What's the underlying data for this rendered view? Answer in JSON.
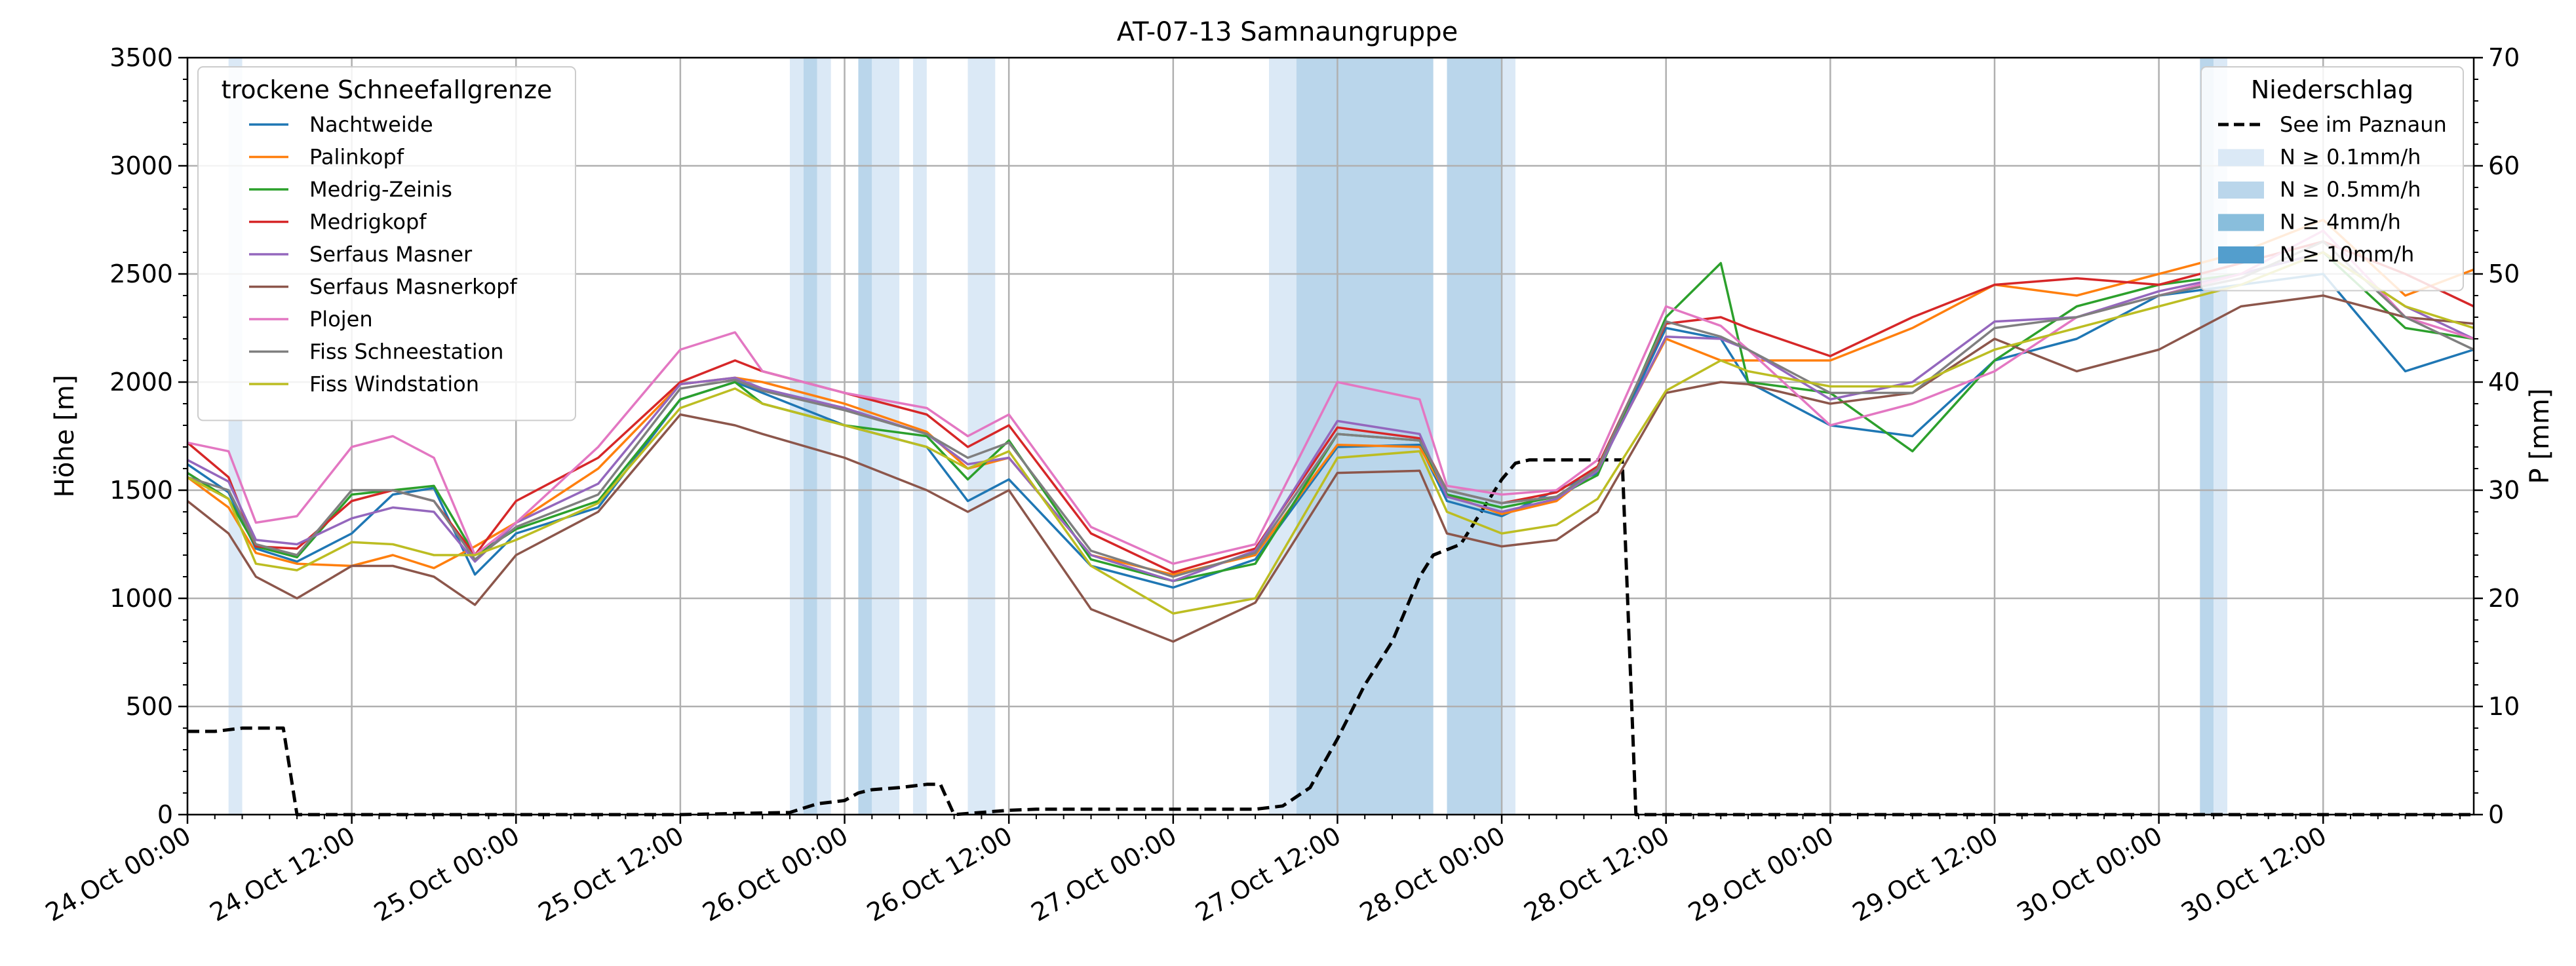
{
  "chart_data": {
    "type": "line",
    "title": "AT-07-13 Samnaungruppe",
    "ylabel": "Höhe [m]",
    "y2label": "P [mm]",
    "ylim": [
      0,
      3500
    ],
    "y2lim": [
      0,
      70
    ],
    "yticks": [
      0,
      500,
      1000,
      1500,
      2000,
      2500,
      3000,
      3500
    ],
    "y2ticks": [
      0,
      10,
      20,
      30,
      40,
      50,
      60,
      70
    ],
    "x_unit": "hours since 24.Oct 00:00",
    "xlim": [
      0,
      167
    ],
    "xticks": [
      {
        "x": 0,
        "label": "24.Oct 00:00"
      },
      {
        "x": 12,
        "label": "24.Oct 12:00"
      },
      {
        "x": 24,
        "label": "25.Oct 00:00"
      },
      {
        "x": 36,
        "label": "25.Oct 12:00"
      },
      {
        "x": 48,
        "label": "26.Oct 00:00"
      },
      {
        "x": 60,
        "label": "26.Oct 12:00"
      },
      {
        "x": 72,
        "label": "27.Oct 00:00"
      },
      {
        "x": 84,
        "label": "27.Oct 12:00"
      },
      {
        "x": 96,
        "label": "28.Oct 00:00"
      },
      {
        "x": 108,
        "label": "28.Oct 12:00"
      },
      {
        "x": 120,
        "label": "29.Oct 00:00"
      },
      {
        "x": 132,
        "label": "29.Oct 12:00"
      },
      {
        "x": 144,
        "label": "30.Oct 00:00"
      },
      {
        "x": 156,
        "label": "30.Oct 12:00"
      }
    ],
    "grid": true,
    "legend_left": {
      "title": "trockene Schneefallgrenze",
      "placement": "upper-left"
    },
    "legend_right": {
      "title": "Niederschlag",
      "placement": "upper-right",
      "entries": [
        {
          "label": "See im Paznaun",
          "kind": "line",
          "color": "#000000",
          "dash": true
        },
        {
          "label": "N ≥ 0.1mm/h",
          "kind": "patch",
          "color": "#dbe9f6"
        },
        {
          "label": "N ≥ 0.5mm/h",
          "kind": "patch",
          "color": "#bad6eb"
        },
        {
          "label": "N ≥ 4mm/h",
          "kind": "patch",
          "color": "#89bedc"
        },
        {
          "label": "N ≥ 10mm/h",
          "kind": "patch",
          "color": "#539ecd"
        }
      ]
    },
    "precip_bands": [
      {
        "x0": 3,
        "x1": 4,
        "level": 0.1
      },
      {
        "x0": 44,
        "x1": 45,
        "level": 0.1
      },
      {
        "x0": 45,
        "x1": 46,
        "level": 0.5
      },
      {
        "x0": 46,
        "x1": 47,
        "level": 0.1
      },
      {
        "x0": 49,
        "x1": 50,
        "level": 0.5
      },
      {
        "x0": 50,
        "x1": 52,
        "level": 0.1
      },
      {
        "x0": 53,
        "x1": 54,
        "level": 0.1
      },
      {
        "x0": 57,
        "x1": 59,
        "level": 0.1
      },
      {
        "x0": 79,
        "x1": 81,
        "level": 0.1
      },
      {
        "x0": 81,
        "x1": 91,
        "level": 0.5
      },
      {
        "x0": 92,
        "x1": 96,
        "level": 0.5
      },
      {
        "x0": 96,
        "x1": 97,
        "level": 0.1
      },
      {
        "x0": 147,
        "x1": 148,
        "level": 0.5
      },
      {
        "x0": 148,
        "x1": 149,
        "level": 0.1
      }
    ],
    "series": [
      {
        "name": "Nachtweide",
        "color": "#1f77b4",
        "x": [
          0,
          3,
          5,
          8,
          12,
          15,
          18,
          21,
          24,
          30,
          36,
          40,
          42,
          48,
          54,
          57,
          60,
          66,
          72,
          78,
          84,
          90,
          92,
          96,
          100,
          103,
          108,
          112,
          114,
          120,
          126,
          132,
          138,
          144,
          150,
          156,
          162,
          167
        ],
        "values": [
          1620,
          1490,
          1230,
          1170,
          1300,
          1480,
          1510,
          1110,
          1300,
          1420,
          1920,
          2000,
          1950,
          1800,
          1700,
          1450,
          1550,
          1150,
          1050,
          1180,
          1700,
          1710,
          1450,
          1380,
          1500,
          1580,
          2250,
          2200,
          2000,
          1800,
          1750,
          2100,
          2200,
          2400,
          2450,
          2500,
          2050,
          2150
        ]
      },
      {
        "name": "Palinkopf",
        "color": "#ff7f0e",
        "x": [
          0,
          3,
          5,
          8,
          12,
          15,
          18,
          21,
          24,
          30,
          36,
          40,
          42,
          48,
          54,
          57,
          60,
          66,
          72,
          78,
          84,
          90,
          92,
          96,
          100,
          103,
          108,
          112,
          114,
          120,
          126,
          132,
          138,
          144,
          150,
          156,
          162,
          167
        ],
        "values": [
          1560,
          1420,
          1210,
          1160,
          1150,
          1200,
          1140,
          1240,
          1350,
          1600,
          1990,
          2020,
          2000,
          1900,
          1770,
          1600,
          1650,
          1200,
          1110,
          1200,
          1710,
          1700,
          1480,
          1390,
          1450,
          1600,
          2200,
          2100,
          2100,
          2100,
          2250,
          2450,
          2400,
          2500,
          2600,
          2750,
          2400,
          2520
        ]
      },
      {
        "name": "Medrig-Zeinis",
        "color": "#2ca02c",
        "x": [
          0,
          3,
          5,
          8,
          12,
          15,
          18,
          21,
          24,
          30,
          36,
          40,
          42,
          48,
          54,
          57,
          60,
          66,
          72,
          78,
          84,
          90,
          92,
          96,
          100,
          103,
          108,
          112,
          114,
          120,
          126,
          132,
          138,
          144,
          150,
          156,
          162,
          167
        ],
        "values": [
          1580,
          1460,
          1240,
          1190,
          1480,
          1500,
          1520,
          1200,
          1320,
          1450,
          1920,
          2000,
          1900,
          1800,
          1750,
          1550,
          1730,
          1180,
          1080,
          1160,
          1760,
          1730,
          1480,
          1420,
          1470,
          1570,
          2300,
          2550,
          2000,
          1950,
          1680,
          2100,
          2350,
          2450,
          2500,
          2600,
          2250,
          2200
        ]
      },
      {
        "name": "Medrigkopf",
        "color": "#d62728",
        "x": [
          0,
          3,
          5,
          8,
          12,
          15,
          18,
          21,
          24,
          30,
          36,
          40,
          42,
          48,
          54,
          57,
          60,
          66,
          72,
          78,
          84,
          90,
          92,
          96,
          100,
          103,
          108,
          112,
          114,
          120,
          126,
          132,
          138,
          144,
          150,
          156,
          162,
          167
        ],
        "values": [
          1720,
          1560,
          1240,
          1230,
          1450,
          1500,
          1450,
          1200,
          1450,
          1650,
          2000,
          2100,
          2050,
          1950,
          1850,
          1700,
          1800,
          1300,
          1120,
          1230,
          1790,
          1740,
          1500,
          1440,
          1490,
          1610,
          2270,
          2300,
          2250,
          2120,
          2300,
          2450,
          2480,
          2450,
          2550,
          2650,
          2500,
          2350
        ]
      },
      {
        "name": "Serfaus Masner",
        "color": "#9467bd",
        "x": [
          0,
          3,
          5,
          8,
          12,
          15,
          18,
          21,
          24,
          30,
          36,
          40,
          42,
          48,
          54,
          57,
          60,
          66,
          72,
          78,
          84,
          90,
          92,
          96,
          100,
          103,
          108,
          112,
          114,
          120,
          126,
          132,
          138,
          144,
          150,
          156,
          162,
          167
        ],
        "values": [
          1640,
          1540,
          1270,
          1250,
          1370,
          1420,
          1400,
          1170,
          1350,
          1530,
          1990,
          2020,
          1970,
          1880,
          1760,
          1620,
          1650,
          1200,
          1080,
          1220,
          1820,
          1760,
          1470,
          1400,
          1460,
          1590,
          2210,
          2200,
          2150,
          1920,
          2000,
          2280,
          2300,
          2420,
          2500,
          2600,
          2350,
          2200
        ]
      },
      {
        "name": "Serfaus Masnerkopf",
        "color": "#8c564b",
        "x": [
          0,
          3,
          5,
          8,
          12,
          15,
          18,
          21,
          24,
          30,
          36,
          40,
          42,
          48,
          54,
          57,
          60,
          66,
          72,
          78,
          84,
          90,
          92,
          96,
          100,
          103,
          108,
          112,
          114,
          120,
          126,
          132,
          138,
          144,
          150,
          156,
          162,
          167
        ],
        "values": [
          1450,
          1300,
          1100,
          1000,
          1150,
          1150,
          1100,
          970,
          1200,
          1400,
          1850,
          1800,
          1760,
          1650,
          1500,
          1400,
          1500,
          950,
          800,
          980,
          1580,
          1590,
          1300,
          1240,
          1270,
          1400,
          1950,
          2000,
          1990,
          1900,
          1950,
          2200,
          2050,
          2150,
          2350,
          2400,
          2300,
          2270
        ]
      },
      {
        "name": "Plojen",
        "color": "#e377c2",
        "x": [
          0,
          3,
          5,
          8,
          12,
          15,
          18,
          21,
          24,
          30,
          36,
          40,
          42,
          48,
          54,
          57,
          60,
          66,
          72,
          78,
          84,
          90,
          92,
          96,
          100,
          103,
          108,
          112,
          114,
          120,
          126,
          132,
          138,
          144,
          150,
          156,
          162,
          167
        ],
        "values": [
          1720,
          1680,
          1350,
          1380,
          1700,
          1750,
          1650,
          1200,
          1350,
          1700,
          2150,
          2230,
          2050,
          1950,
          1880,
          1750,
          1850,
          1330,
          1160,
          1250,
          2000,
          1920,
          1520,
          1480,
          1500,
          1640,
          2350,
          2260,
          2150,
          1800,
          1900,
          2050,
          2300,
          2400,
          2500,
          2700,
          2300,
          2200
        ]
      },
      {
        "name": "Fiss Schneestation",
        "color": "#7f7f7f",
        "x": [
          0,
          3,
          5,
          8,
          12,
          15,
          18,
          21,
          24,
          30,
          36,
          40,
          42,
          48,
          54,
          57,
          60,
          66,
          72,
          78,
          84,
          90,
          92,
          96,
          100,
          103,
          108,
          112,
          114,
          120,
          126,
          132,
          138,
          144,
          150,
          156,
          162,
          167
        ],
        "values": [
          1560,
          1500,
          1250,
          1200,
          1500,
          1500,
          1450,
          1180,
          1330,
          1480,
          1970,
          2010,
          1960,
          1870,
          1760,
          1650,
          1720,
          1220,
          1100,
          1210,
          1760,
          1730,
          1500,
          1440,
          1470,
          1600,
          2280,
          2210,
          2150,
          1950,
          1950,
          2250,
          2300,
          2400,
          2480,
          2650,
          2300,
          2150
        ]
      },
      {
        "name": "Fiss Windstation",
        "color": "#bcbd22",
        "x": [
          0,
          3,
          5,
          8,
          12,
          15,
          18,
          21,
          24,
          30,
          36,
          40,
          42,
          48,
          54,
          57,
          60,
          66,
          72,
          78,
          84,
          90,
          92,
          96,
          100,
          103,
          108,
          112,
          114,
          120,
          126,
          132,
          138,
          144,
          150,
          156,
          162,
          167
        ],
        "values": [
          1560,
          1460,
          1160,
          1130,
          1260,
          1250,
          1200,
          1200,
          1270,
          1440,
          1880,
          1970,
          1900,
          1800,
          1700,
          1600,
          1680,
          1150,
          930,
          1000,
          1650,
          1680,
          1400,
          1300,
          1340,
          1460,
          1960,
          2100,
          2050,
          1980,
          1980,
          2150,
          2250,
          2350,
          2450,
          2600,
          2350,
          2250
        ]
      }
    ],
    "precip_series": {
      "name": "See im Paznaun",
      "color": "#000000",
      "dash": true,
      "axis": "right",
      "x": [
        0,
        2,
        4,
        6,
        7,
        8,
        36,
        44,
        46,
        48,
        49,
        50,
        52,
        54,
        55,
        56,
        57,
        59,
        60,
        62,
        66,
        72,
        78,
        80,
        82,
        84,
        86,
        88,
        90,
        91,
        93,
        94,
        96,
        97,
        98,
        99,
        103,
        104,
        104.8,
        105.8,
        167
      ],
      "values": [
        7.7,
        7.7,
        8,
        8,
        8,
        0,
        0,
        0.2,
        1,
        1.3,
        2,
        2.3,
        2.5,
        2.8,
        2.8,
        0,
        0.1,
        0.3,
        0.4,
        0.5,
        0.5,
        0.5,
        0.5,
        0.8,
        2.5,
        7,
        12,
        16,
        22,
        24,
        25,
        27,
        31,
        32.5,
        32.8,
        32.8,
        32.8,
        32.8,
        32.8,
        0,
        0
      ]
    }
  }
}
